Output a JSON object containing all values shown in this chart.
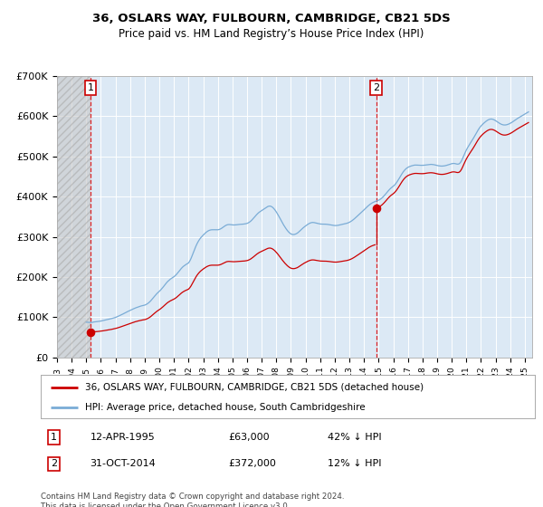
{
  "title": "36, OSLARS WAY, FULBOURN, CAMBRIDGE, CB21 5DS",
  "subtitle": "Price paid vs. HM Land Registry’s House Price Index (HPI)",
  "ylim": [
    0,
    700000
  ],
  "yticks": [
    0,
    100000,
    200000,
    300000,
    400000,
    500000,
    600000,
    700000
  ],
  "ytick_labels": [
    "£0",
    "£100K",
    "£200K",
    "£300K",
    "£400K",
    "£500K",
    "£600K",
    "£700K"
  ],
  "xlim_start": 1993.0,
  "xlim_end": 2025.5,
  "purchase1_date": 1995.28,
  "purchase1_price": 63000,
  "purchase2_date": 2014.83,
  "purchase2_price": 372000,
  "line_color_property": "#cc0000",
  "line_color_hpi": "#7aacd6",
  "vline_color": "#dd0000",
  "legend_label_property": "36, OSLARS WAY, FULBOURN, CAMBRIDGE, CB21 5DS (detached house)",
  "legend_label_hpi": "HPI: Average price, detached house, South Cambridgeshire",
  "copyright_text": "Contains HM Land Registry data © Crown copyright and database right 2024.\nThis data is licensed under the Open Government Licence v3.0.",
  "hpi_monthly": [
    [
      1995.0,
      87462
    ],
    [
      1995.083,
      87800
    ],
    [
      1995.167,
      87100
    ],
    [
      1995.25,
      87350
    ],
    [
      1995.333,
      86900
    ],
    [
      1995.417,
      87200
    ],
    [
      1995.5,
      88100
    ],
    [
      1995.583,
      88400
    ],
    [
      1995.667,
      88800
    ],
    [
      1995.75,
      89200
    ],
    [
      1995.833,
      89600
    ],
    [
      1995.917,
      90100
    ],
    [
      1996.0,
      90500
    ],
    [
      1996.083,
      91200
    ],
    [
      1996.167,
      91800
    ],
    [
      1996.25,
      92500
    ],
    [
      1996.333,
      93100
    ],
    [
      1996.417,
      93800
    ],
    [
      1996.5,
      94600
    ],
    [
      1996.583,
      95400
    ],
    [
      1996.667,
      96100
    ],
    [
      1996.75,
      96900
    ],
    [
      1996.833,
      97800
    ],
    [
      1996.917,
      98700
    ],
    [
      1997.0,
      99600
    ],
    [
      1997.083,
      100800
    ],
    [
      1997.167,
      102100
    ],
    [
      1997.25,
      103500
    ],
    [
      1997.333,
      104900
    ],
    [
      1997.417,
      106400
    ],
    [
      1997.5,
      107900
    ],
    [
      1997.583,
      109500
    ],
    [
      1997.667,
      111000
    ],
    [
      1997.75,
      112600
    ],
    [
      1997.833,
      114100
    ],
    [
      1997.917,
      115600
    ],
    [
      1998.0,
      117000
    ],
    [
      1998.083,
      118500
    ],
    [
      1998.167,
      119900
    ],
    [
      1998.25,
      121300
    ],
    [
      1998.333,
      122600
    ],
    [
      1998.417,
      123800
    ],
    [
      1998.5,
      124900
    ],
    [
      1998.583,
      126000
    ],
    [
      1998.667,
      127000
    ],
    [
      1998.75,
      128000
    ],
    [
      1998.833,
      128800
    ],
    [
      1998.917,
      129500
    ],
    [
      1999.0,
      130200
    ],
    [
      1999.083,
      131500
    ],
    [
      1999.167,
      133200
    ],
    [
      1999.25,
      135400
    ],
    [
      1999.333,
      138000
    ],
    [
      1999.417,
      141100
    ],
    [
      1999.5,
      144600
    ],
    [
      1999.583,
      148300
    ],
    [
      1999.667,
      152000
    ],
    [
      1999.75,
      155600
    ],
    [
      1999.833,
      158900
    ],
    [
      1999.917,
      161800
    ],
    [
      2000.0,
      164500
    ],
    [
      2000.083,
      167500
    ],
    [
      2000.167,
      170900
    ],
    [
      2000.25,
      174600
    ],
    [
      2000.333,
      178500
    ],
    [
      2000.417,
      182400
    ],
    [
      2000.5,
      186100
    ],
    [
      2000.583,
      189400
    ],
    [
      2000.667,
      192200
    ],
    [
      2000.75,
      194700
    ],
    [
      2000.833,
      196900
    ],
    [
      2000.917,
      198900
    ],
    [
      2001.0,
      200900
    ],
    [
      2001.083,
      203400
    ],
    [
      2001.167,
      206400
    ],
    [
      2001.25,
      209900
    ],
    [
      2001.333,
      213700
    ],
    [
      2001.417,
      217600
    ],
    [
      2001.5,
      221300
    ],
    [
      2001.583,
      224500
    ],
    [
      2001.667,
      227200
    ],
    [
      2001.75,
      229500
    ],
    [
      2001.833,
      231500
    ],
    [
      2001.917,
      233300
    ],
    [
      2002.0,
      235200
    ],
    [
      2002.083,
      240000
    ],
    [
      2002.167,
      246200
    ],
    [
      2002.25,
      253500
    ],
    [
      2002.333,
      261400
    ],
    [
      2002.417,
      269300
    ],
    [
      2002.5,
      276800
    ],
    [
      2002.583,
      283300
    ],
    [
      2002.667,
      288900
    ],
    [
      2002.75,
      293700
    ],
    [
      2002.833,
      297800
    ],
    [
      2002.917,
      301300
    ],
    [
      2003.0,
      304400
    ],
    [
      2003.083,
      307400
    ],
    [
      2003.167,
      310200
    ],
    [
      2003.25,
      312700
    ],
    [
      2003.333,
      314700
    ],
    [
      2003.417,
      316200
    ],
    [
      2003.5,
      317100
    ],
    [
      2003.583,
      317600
    ],
    [
      2003.667,
      317700
    ],
    [
      2003.75,
      317700
    ],
    [
      2003.833,
      317600
    ],
    [
      2003.917,
      317500
    ],
    [
      2004.0,
      317600
    ],
    [
      2004.083,
      318200
    ],
    [
      2004.167,
      319400
    ],
    [
      2004.25,
      321100
    ],
    [
      2004.333,
      323200
    ],
    [
      2004.417,
      325400
    ],
    [
      2004.5,
      327500
    ],
    [
      2004.583,
      329200
    ],
    [
      2004.667,
      330200
    ],
    [
      2004.75,
      330600
    ],
    [
      2004.833,
      330500
    ],
    [
      2004.917,
      330100
    ],
    [
      2005.0,
      329700
    ],
    [
      2005.083,
      329500
    ],
    [
      2005.167,
      329600
    ],
    [
      2005.25,
      329900
    ],
    [
      2005.333,
      330300
    ],
    [
      2005.417,
      330700
    ],
    [
      2005.5,
      331000
    ],
    [
      2005.583,
      331200
    ],
    [
      2005.667,
      331400
    ],
    [
      2005.75,
      331700
    ],
    [
      2005.833,
      332100
    ],
    [
      2005.917,
      332700
    ],
    [
      2006.0,
      333500
    ],
    [
      2006.083,
      334800
    ],
    [
      2006.167,
      336700
    ],
    [
      2006.25,
      339100
    ],
    [
      2006.333,
      342000
    ],
    [
      2006.417,
      345300
    ],
    [
      2006.5,
      348800
    ],
    [
      2006.583,
      352300
    ],
    [
      2006.667,
      355700
    ],
    [
      2006.75,
      358700
    ],
    [
      2006.833,
      361300
    ],
    [
      2006.917,
      363500
    ],
    [
      2007.0,
      365400
    ],
    [
      2007.083,
      367400
    ],
    [
      2007.167,
      369500
    ],
    [
      2007.25,
      371700
    ],
    [
      2007.333,
      373700
    ],
    [
      2007.417,
      375400
    ],
    [
      2007.5,
      376400
    ],
    [
      2007.583,
      376500
    ],
    [
      2007.667,
      375400
    ],
    [
      2007.75,
      373300
    ],
    [
      2007.833,
      370200
    ],
    [
      2007.917,
      366400
    ],
    [
      2008.0,
      362000
    ],
    [
      2008.083,
      357100
    ],
    [
      2008.167,
      351700
    ],
    [
      2008.25,
      346100
    ],
    [
      2008.333,
      340400
    ],
    [
      2008.417,
      334900
    ],
    [
      2008.5,
      329600
    ],
    [
      2008.583,
      324700
    ],
    [
      2008.667,
      320200
    ],
    [
      2008.75,
      316100
    ],
    [
      2008.833,
      312500
    ],
    [
      2008.917,
      309500
    ],
    [
      2009.0,
      307300
    ],
    [
      2009.083,
      306100
    ],
    [
      2009.167,
      305700
    ],
    [
      2009.25,
      306100
    ],
    [
      2009.333,
      307200
    ],
    [
      2009.417,
      308800
    ],
    [
      2009.5,
      311000
    ],
    [
      2009.583,
      313700
    ],
    [
      2009.667,
      316600
    ],
    [
      2009.75,
      319500
    ],
    [
      2009.833,
      322300
    ],
    [
      2009.917,
      324800
    ],
    [
      2010.0,
      327100
    ],
    [
      2010.083,
      329300
    ],
    [
      2010.167,
      331400
    ],
    [
      2010.25,
      333200
    ],
    [
      2010.333,
      334600
    ],
    [
      2010.417,
      335500
    ],
    [
      2010.5,
      335800
    ],
    [
      2010.583,
      335500
    ],
    [
      2010.667,
      334800
    ],
    [
      2010.75,
      334000
    ],
    [
      2010.833,
      333200
    ],
    [
      2010.917,
      332500
    ],
    [
      2011.0,
      332000
    ],
    [
      2011.083,
      331700
    ],
    [
      2011.167,
      331600
    ],
    [
      2011.25,
      331600
    ],
    [
      2011.333,
      331500
    ],
    [
      2011.417,
      331300
    ],
    [
      2011.5,
      331000
    ],
    [
      2011.583,
      330500
    ],
    [
      2011.667,
      329900
    ],
    [
      2011.75,
      329300
    ],
    [
      2011.833,
      328800
    ],
    [
      2011.917,
      328400
    ],
    [
      2012.0,
      328100
    ],
    [
      2012.083,
      328100
    ],
    [
      2012.167,
      328400
    ],
    [
      2012.25,
      328900
    ],
    [
      2012.333,
      329600
    ],
    [
      2012.417,
      330400
    ],
    [
      2012.5,
      331100
    ],
    [
      2012.583,
      331700
    ],
    [
      2012.667,
      332300
    ],
    [
      2012.75,
      333000
    ],
    [
      2012.833,
      333800
    ],
    [
      2012.917,
      334900
    ],
    [
      2013.0,
      336200
    ],
    [
      2013.083,
      337900
    ],
    [
      2013.167,
      339900
    ],
    [
      2013.25,
      342200
    ],
    [
      2013.333,
      344700
    ],
    [
      2013.417,
      347400
    ],
    [
      2013.5,
      350200
    ],
    [
      2013.583,
      353000
    ],
    [
      2013.667,
      355800
    ],
    [
      2013.75,
      358600
    ],
    [
      2013.833,
      361400
    ],
    [
      2013.917,
      364200
    ],
    [
      2014.0,
      367100
    ],
    [
      2014.083,
      370100
    ],
    [
      2014.167,
      373100
    ],
    [
      2014.25,
      376000
    ],
    [
      2014.333,
      378700
    ],
    [
      2014.417,
      381100
    ],
    [
      2014.5,
      383200
    ],
    [
      2014.583,
      385000
    ],
    [
      2014.667,
      386500
    ],
    [
      2014.75,
      387800
    ],
    [
      2014.833,
      388900
    ],
    [
      2014.917,
      390000
    ],
    [
      2015.0,
      391200
    ],
    [
      2015.083,
      392800
    ],
    [
      2015.167,
      394900
    ],
    [
      2015.25,
      397500
    ],
    [
      2015.333,
      400500
    ],
    [
      2015.417,
      403900
    ],
    [
      2015.5,
      407500
    ],
    [
      2015.583,
      411200
    ],
    [
      2015.667,
      414800
    ],
    [
      2015.75,
      418100
    ],
    [
      2015.833,
      421000
    ],
    [
      2015.917,
      423500
    ],
    [
      2016.0,
      425800
    ],
    [
      2016.083,
      428600
    ],
    [
      2016.167,
      432100
    ],
    [
      2016.25,
      436300
    ],
    [
      2016.333,
      441000
    ],
    [
      2016.417,
      446000
    ],
    [
      2016.5,
      451200
    ],
    [
      2016.583,
      456200
    ],
    [
      2016.667,
      460800
    ],
    [
      2016.75,
      464800
    ],
    [
      2016.833,
      468100
    ],
    [
      2016.917,
      470800
    ],
    [
      2017.0,
      472800
    ],
    [
      2017.083,
      474400
    ],
    [
      2017.167,
      475600
    ],
    [
      2017.25,
      476600
    ],
    [
      2017.333,
      477500
    ],
    [
      2017.417,
      478200
    ],
    [
      2017.5,
      478600
    ],
    [
      2017.583,
      478600
    ],
    [
      2017.667,
      478400
    ],
    [
      2017.75,
      478200
    ],
    [
      2017.833,
      478000
    ],
    [
      2017.917,
      477900
    ],
    [
      2018.0,
      477900
    ],
    [
      2018.083,
      478100
    ],
    [
      2018.167,
      478500
    ],
    [
      2018.25,
      479000
    ],
    [
      2018.333,
      479500
    ],
    [
      2018.417,
      479900
    ],
    [
      2018.5,
      480200
    ],
    [
      2018.583,
      480300
    ],
    [
      2018.667,
      480100
    ],
    [
      2018.75,
      479700
    ],
    [
      2018.833,
      479100
    ],
    [
      2018.917,
      478400
    ],
    [
      2019.0,
      477600
    ],
    [
      2019.083,
      476900
    ],
    [
      2019.167,
      476400
    ],
    [
      2019.25,
      476100
    ],
    [
      2019.333,
      476000
    ],
    [
      2019.417,
      476200
    ],
    [
      2019.5,
      476600
    ],
    [
      2019.583,
      477300
    ],
    [
      2019.667,
      478100
    ],
    [
      2019.75,
      479000
    ],
    [
      2019.833,
      480000
    ],
    [
      2019.917,
      481000
    ],
    [
      2020.0,
      482000
    ],
    [
      2020.083,
      482500
    ],
    [
      2020.167,
      482500
    ],
    [
      2020.25,
      482000
    ],
    [
      2020.333,
      481200
    ],
    [
      2020.417,
      480800
    ],
    [
      2020.5,
      481500
    ],
    [
      2020.583,
      484200
    ],
    [
      2020.667,
      489100
    ],
    [
      2020.75,
      495600
    ],
    [
      2020.833,
      502700
    ],
    [
      2020.917,
      509600
    ],
    [
      2021.0,
      516000
    ],
    [
      2021.083,
      521700
    ],
    [
      2021.167,
      526900
    ],
    [
      2021.25,
      531800
    ],
    [
      2021.333,
      536600
    ],
    [
      2021.417,
      541400
    ],
    [
      2021.5,
      546400
    ],
    [
      2021.583,
      551600
    ],
    [
      2021.667,
      557100
    ],
    [
      2021.75,
      562500
    ],
    [
      2021.833,
      567500
    ],
    [
      2021.917,
      571900
    ],
    [
      2022.0,
      575600
    ],
    [
      2022.083,
      578900
    ],
    [
      2022.167,
      581900
    ],
    [
      2022.25,
      584600
    ],
    [
      2022.333,
      587100
    ],
    [
      2022.417,
      589300
    ],
    [
      2022.5,
      591100
    ],
    [
      2022.583,
      592400
    ],
    [
      2022.667,
      593000
    ],
    [
      2022.75,
      592900
    ],
    [
      2022.833,
      592100
    ],
    [
      2022.917,
      590800
    ],
    [
      2023.0,
      589000
    ],
    [
      2023.083,
      587000
    ],
    [
      2023.167,
      584900
    ],
    [
      2023.25,
      582900
    ],
    [
      2023.333,
      581100
    ],
    [
      2023.417,
      579700
    ],
    [
      2023.5,
      578700
    ],
    [
      2023.583,
      578300
    ],
    [
      2023.667,
      578300
    ],
    [
      2023.75,
      578800
    ],
    [
      2023.833,
      579700
    ],
    [
      2023.917,
      580900
    ],
    [
      2024.0,
      582400
    ],
    [
      2024.083,
      584100
    ],
    [
      2024.167,
      586100
    ],
    [
      2024.25,
      588200
    ],
    [
      2024.333,
      590300
    ],
    [
      2024.417,
      592500
    ],
    [
      2024.5,
      594500
    ],
    [
      2024.583,
      596400
    ],
    [
      2024.667,
      598200
    ],
    [
      2024.75,
      600000
    ],
    [
      2024.833,
      601800
    ],
    [
      2024.917,
      603600
    ],
    [
      2025.0,
      605400
    ],
    [
      2025.083,
      607200
    ],
    [
      2025.167,
      609000
    ],
    [
      2025.25,
      610800
    ]
  ]
}
